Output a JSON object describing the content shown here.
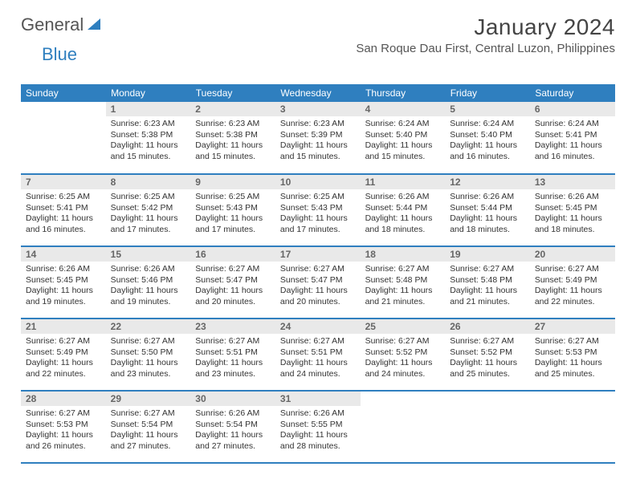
{
  "logo": {
    "word1": "General",
    "word2": "Blue"
  },
  "title": "January 2024",
  "location": "San Roque Dau First, Central Luzon, Philippines",
  "header_bg": "#2f7fbf",
  "daynum_bg": "#e9e9e9",
  "weekdays": [
    "Sunday",
    "Monday",
    "Tuesday",
    "Wednesday",
    "Thursday",
    "Friday",
    "Saturday"
  ],
  "first_weekday": 1,
  "days_in_month": 31,
  "days": [
    {
      "n": 1,
      "sr": "6:23 AM",
      "ss": "5:38 PM",
      "dl": "11 hours and 15 minutes."
    },
    {
      "n": 2,
      "sr": "6:23 AM",
      "ss": "5:38 PM",
      "dl": "11 hours and 15 minutes."
    },
    {
      "n": 3,
      "sr": "6:23 AM",
      "ss": "5:39 PM",
      "dl": "11 hours and 15 minutes."
    },
    {
      "n": 4,
      "sr": "6:24 AM",
      "ss": "5:40 PM",
      "dl": "11 hours and 15 minutes."
    },
    {
      "n": 5,
      "sr": "6:24 AM",
      "ss": "5:40 PM",
      "dl": "11 hours and 16 minutes."
    },
    {
      "n": 6,
      "sr": "6:24 AM",
      "ss": "5:41 PM",
      "dl": "11 hours and 16 minutes."
    },
    {
      "n": 7,
      "sr": "6:25 AM",
      "ss": "5:41 PM",
      "dl": "11 hours and 16 minutes."
    },
    {
      "n": 8,
      "sr": "6:25 AM",
      "ss": "5:42 PM",
      "dl": "11 hours and 17 minutes."
    },
    {
      "n": 9,
      "sr": "6:25 AM",
      "ss": "5:43 PM",
      "dl": "11 hours and 17 minutes."
    },
    {
      "n": 10,
      "sr": "6:25 AM",
      "ss": "5:43 PM",
      "dl": "11 hours and 17 minutes."
    },
    {
      "n": 11,
      "sr": "6:26 AM",
      "ss": "5:44 PM",
      "dl": "11 hours and 18 minutes."
    },
    {
      "n": 12,
      "sr": "6:26 AM",
      "ss": "5:44 PM",
      "dl": "11 hours and 18 minutes."
    },
    {
      "n": 13,
      "sr": "6:26 AM",
      "ss": "5:45 PM",
      "dl": "11 hours and 18 minutes."
    },
    {
      "n": 14,
      "sr": "6:26 AM",
      "ss": "5:45 PM",
      "dl": "11 hours and 19 minutes."
    },
    {
      "n": 15,
      "sr": "6:26 AM",
      "ss": "5:46 PM",
      "dl": "11 hours and 19 minutes."
    },
    {
      "n": 16,
      "sr": "6:27 AM",
      "ss": "5:47 PM",
      "dl": "11 hours and 20 minutes."
    },
    {
      "n": 17,
      "sr": "6:27 AM",
      "ss": "5:47 PM",
      "dl": "11 hours and 20 minutes."
    },
    {
      "n": 18,
      "sr": "6:27 AM",
      "ss": "5:48 PM",
      "dl": "11 hours and 21 minutes."
    },
    {
      "n": 19,
      "sr": "6:27 AM",
      "ss": "5:48 PM",
      "dl": "11 hours and 21 minutes."
    },
    {
      "n": 20,
      "sr": "6:27 AM",
      "ss": "5:49 PM",
      "dl": "11 hours and 22 minutes."
    },
    {
      "n": 21,
      "sr": "6:27 AM",
      "ss": "5:49 PM",
      "dl": "11 hours and 22 minutes."
    },
    {
      "n": 22,
      "sr": "6:27 AM",
      "ss": "5:50 PM",
      "dl": "11 hours and 23 minutes."
    },
    {
      "n": 23,
      "sr": "6:27 AM",
      "ss": "5:51 PM",
      "dl": "11 hours and 23 minutes."
    },
    {
      "n": 24,
      "sr": "6:27 AM",
      "ss": "5:51 PM",
      "dl": "11 hours and 24 minutes."
    },
    {
      "n": 25,
      "sr": "6:27 AM",
      "ss": "5:52 PM",
      "dl": "11 hours and 24 minutes."
    },
    {
      "n": 26,
      "sr": "6:27 AM",
      "ss": "5:52 PM",
      "dl": "11 hours and 25 minutes."
    },
    {
      "n": 27,
      "sr": "6:27 AM",
      "ss": "5:53 PM",
      "dl": "11 hours and 25 minutes."
    },
    {
      "n": 28,
      "sr": "6:27 AM",
      "ss": "5:53 PM",
      "dl": "11 hours and 26 minutes."
    },
    {
      "n": 29,
      "sr": "6:27 AM",
      "ss": "5:54 PM",
      "dl": "11 hours and 27 minutes."
    },
    {
      "n": 30,
      "sr": "6:26 AM",
      "ss": "5:54 PM",
      "dl": "11 hours and 27 minutes."
    },
    {
      "n": 31,
      "sr": "6:26 AM",
      "ss": "5:55 PM",
      "dl": "11 hours and 28 minutes."
    }
  ],
  "labels": {
    "sunrise": "Sunrise:",
    "sunset": "Sunset:",
    "daylight": "Daylight:"
  }
}
